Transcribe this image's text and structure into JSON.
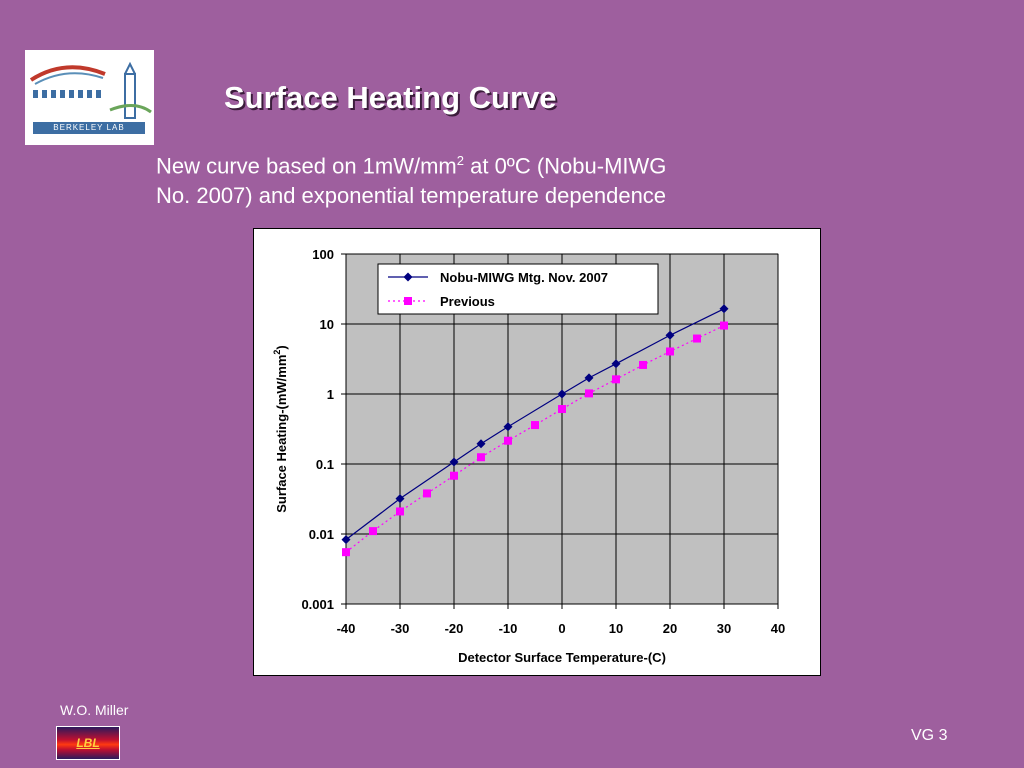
{
  "slide": {
    "title": "Surface Heating Curve",
    "subtitle_line1_pre": "New curve based on 1mW/mm",
    "subtitle_line1_sup": "2",
    "subtitle_line1_post": " at 0ºC (Nobu-MIWG",
    "subtitle_line2": "No. 2007) and exponential temperature dependence",
    "logo_text": "BERKELEY LAB",
    "author": "W.O. Miller",
    "badge_text": "LBL",
    "page_number": "VG 3"
  },
  "colors": {
    "background": "#9e5f9e",
    "plot_area": "#c0c0c0",
    "series_new": "#000080",
    "series_previous": "#ff00ff"
  },
  "chart_data": {
    "type": "line",
    "xlabel": "Detector Surface Temperature-(C)",
    "ylabel": "Surface Heating-(mW/mm",
    "ylabel_sup": "2",
    "ylabel_end": ")",
    "xlim": [
      -40,
      40
    ],
    "x_ticks": [
      -40,
      -30,
      -20,
      -10,
      0,
      10,
      20,
      30,
      40
    ],
    "x_tick_labels": [
      "-40",
      "-30",
      "-20",
      "-10",
      "0",
      "10",
      "20",
      "30",
      "40"
    ],
    "y_scale": "log",
    "ylim": [
      0.001,
      100
    ],
    "y_ticks": [
      0.001,
      0.01,
      0.1,
      1,
      10,
      100
    ],
    "y_tick_labels": [
      "0.001",
      "0.01",
      "0.1",
      "1",
      "10",
      "100"
    ],
    "grid": true,
    "legend_position": "top-left inside plot",
    "series": [
      {
        "name": "Nobu-MIWG Mtg. Nov. 2007",
        "style": "solid line, diamond markers",
        "x": [
          -40,
          -30,
          -20,
          -15,
          -10,
          0,
          5,
          10,
          20,
          30
        ],
        "y": [
          0.0083,
          0.032,
          0.107,
          0.195,
          0.34,
          1.0,
          1.7,
          2.7,
          6.9,
          16.5
        ]
      },
      {
        "name": "Previous",
        "style": "dotted line, square markers",
        "x": [
          -40,
          -35,
          -30,
          -25,
          -20,
          -15,
          -10,
          -5,
          0,
          5,
          10,
          15,
          20,
          25,
          30
        ],
        "y": [
          0.0055,
          0.011,
          0.021,
          0.038,
          0.068,
          0.125,
          0.215,
          0.36,
          0.61,
          1.02,
          1.62,
          2.6,
          4.05,
          6.2,
          9.5
        ]
      }
    ]
  }
}
